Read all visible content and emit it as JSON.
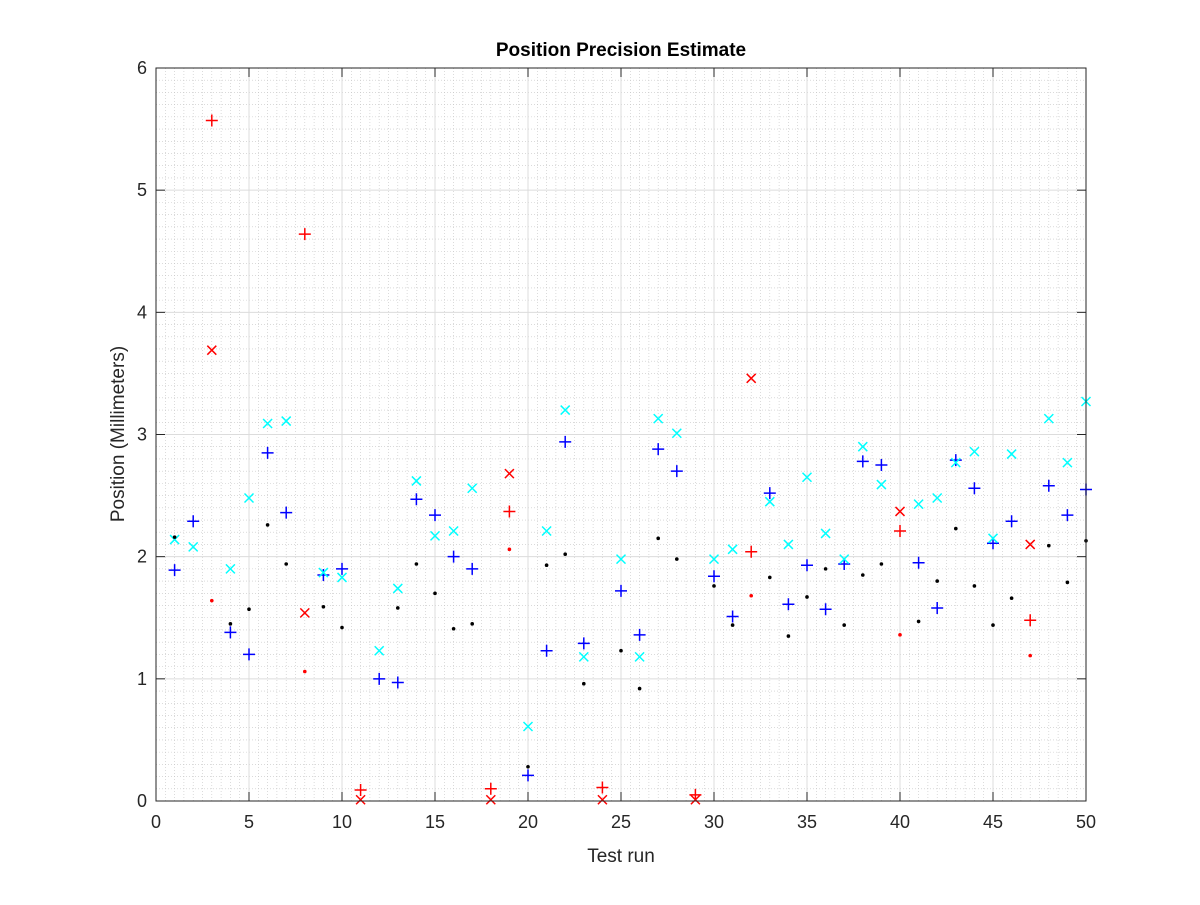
{
  "chart_data": {
    "type": "scatter",
    "title": "Position Precision Estimate",
    "xlabel": "Test run",
    "ylabel": "Position (Millimeters)",
    "xlim": [
      0,
      50
    ],
    "ylim": [
      0,
      6
    ],
    "xticks": [
      0,
      5,
      10,
      15,
      20,
      25,
      30,
      35,
      40,
      45,
      50
    ],
    "yticks": [
      0,
      1,
      2,
      3,
      4,
      5,
      6
    ],
    "grid": "major and minor",
    "legend": "none",
    "series": [
      {
        "marker": "plus",
        "color": "#0000FF",
        "points": [
          [
            1,
            1.89
          ],
          [
            2,
            2.29
          ],
          [
            4,
            1.38
          ],
          [
            5,
            1.2
          ],
          [
            6,
            2.85
          ],
          [
            7,
            2.36
          ],
          [
            9,
            1.85
          ],
          [
            10,
            1.9
          ],
          [
            12,
            1.0
          ],
          [
            13,
            0.97
          ],
          [
            14,
            2.47
          ],
          [
            15,
            2.34
          ],
          [
            16,
            2.0
          ],
          [
            17,
            1.9
          ],
          [
            20,
            0.21
          ],
          [
            21,
            1.23
          ],
          [
            22,
            2.94
          ],
          [
            23,
            1.29
          ],
          [
            25,
            1.72
          ],
          [
            26,
            1.36
          ],
          [
            27,
            2.88
          ],
          [
            28,
            2.7
          ],
          [
            30,
            1.84
          ],
          [
            31,
            1.51
          ],
          [
            33,
            2.52
          ],
          [
            34,
            1.61
          ],
          [
            35,
            1.93
          ],
          [
            36,
            1.57
          ],
          [
            37,
            1.94
          ],
          [
            38,
            2.78
          ],
          [
            39,
            2.75
          ],
          [
            41,
            1.95
          ],
          [
            42,
            1.58
          ],
          [
            43,
            2.79
          ],
          [
            44,
            2.56
          ],
          [
            45,
            2.11
          ],
          [
            46,
            2.29
          ],
          [
            48,
            2.58
          ],
          [
            49,
            2.34
          ],
          [
            50,
            2.55
          ]
        ]
      },
      {
        "marker": "x",
        "color": "#00FFFF",
        "points": [
          [
            1,
            2.14
          ],
          [
            2,
            2.08
          ],
          [
            4,
            1.9
          ],
          [
            5,
            2.48
          ],
          [
            6,
            3.09
          ],
          [
            7,
            3.11
          ],
          [
            9,
            1.87
          ],
          [
            10,
            1.83
          ],
          [
            12,
            1.23
          ],
          [
            13,
            1.74
          ],
          [
            14,
            2.62
          ],
          [
            15,
            2.17
          ],
          [
            16,
            2.21
          ],
          [
            17,
            2.56
          ],
          [
            20,
            0.61
          ],
          [
            21,
            2.21
          ],
          [
            22,
            3.2
          ],
          [
            23,
            1.18
          ],
          [
            25,
            1.98
          ],
          [
            26,
            1.18
          ],
          [
            27,
            3.13
          ],
          [
            28,
            3.01
          ],
          [
            30,
            1.98
          ],
          [
            31,
            2.06
          ],
          [
            33,
            2.45
          ],
          [
            34,
            2.1
          ],
          [
            35,
            2.65
          ],
          [
            36,
            2.19
          ],
          [
            37,
            1.98
          ],
          [
            38,
            2.9
          ],
          [
            39,
            2.59
          ],
          [
            41,
            2.43
          ],
          [
            42,
            2.48
          ],
          [
            43,
            2.77
          ],
          [
            44,
            2.86
          ],
          [
            45,
            2.15
          ],
          [
            46,
            2.84
          ],
          [
            48,
            3.13
          ],
          [
            49,
            2.77
          ],
          [
            50,
            3.27
          ]
        ]
      },
      {
        "marker": "dot",
        "color": "#000000",
        "points": [
          [
            1,
            2.16
          ],
          [
            4,
            1.45
          ],
          [
            5,
            1.57
          ],
          [
            6,
            2.26
          ],
          [
            7,
            1.94
          ],
          [
            9,
            1.59
          ],
          [
            10,
            1.42
          ],
          [
            13,
            1.58
          ],
          [
            14,
            1.94
          ],
          [
            15,
            1.7
          ],
          [
            16,
            1.41
          ],
          [
            17,
            1.45
          ],
          [
            20,
            0.28
          ],
          [
            21,
            1.93
          ],
          [
            22,
            2.02
          ],
          [
            23,
            0.96
          ],
          [
            25,
            1.23
          ],
          [
            26,
            0.92
          ],
          [
            27,
            2.15
          ],
          [
            28,
            1.98
          ],
          [
            30,
            1.76
          ],
          [
            31,
            1.44
          ],
          [
            33,
            1.83
          ],
          [
            34,
            1.35
          ],
          [
            35,
            1.67
          ],
          [
            36,
            1.9
          ],
          [
            37,
            1.44
          ],
          [
            38,
            1.85
          ],
          [
            39,
            1.94
          ],
          [
            41,
            1.47
          ],
          [
            42,
            1.8
          ],
          [
            43,
            2.23
          ],
          [
            44,
            1.76
          ],
          [
            45,
            1.44
          ],
          [
            46,
            1.66
          ],
          [
            48,
            2.09
          ],
          [
            49,
            1.79
          ],
          [
            50,
            2.13
          ]
        ]
      },
      {
        "marker": "plus",
        "color": "#FF0000",
        "points": [
          [
            3,
            5.57
          ],
          [
            8,
            4.64
          ],
          [
            11,
            0.09
          ],
          [
            18,
            0.1
          ],
          [
            19,
            2.37
          ],
          [
            24,
            0.11
          ],
          [
            29,
            0.05
          ],
          [
            32,
            2.04
          ],
          [
            40,
            2.21
          ],
          [
            47,
            1.48
          ]
        ]
      },
      {
        "marker": "x",
        "color": "#FF0000",
        "points": [
          [
            3,
            3.69
          ],
          [
            8,
            1.54
          ],
          [
            11,
            0.01
          ],
          [
            18,
            0.01
          ],
          [
            19,
            2.68
          ],
          [
            24,
            0.01
          ],
          [
            29,
            0.01
          ],
          [
            32,
            3.46
          ],
          [
            40,
            2.37
          ],
          [
            47,
            2.1
          ]
        ]
      },
      {
        "marker": "dot",
        "color": "#FF0000",
        "points": [
          [
            3,
            1.64
          ],
          [
            8,
            1.06
          ],
          [
            19,
            2.06
          ],
          [
            32,
            1.68
          ],
          [
            40,
            1.36
          ],
          [
            47,
            1.19
          ]
        ]
      }
    ]
  }
}
